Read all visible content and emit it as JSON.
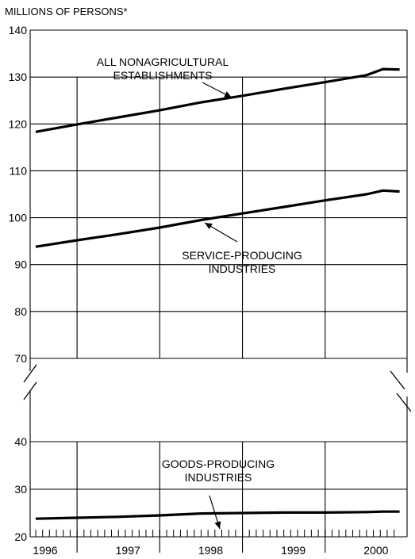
{
  "chart_data": {
    "type": "line",
    "title": "",
    "ylabel": "MILLIONS OF PERSONS*",
    "xlabel": "",
    "y_axis_break": [
      45,
      67
    ],
    "yticks_upper": [
      70,
      80,
      90,
      100,
      110,
      120,
      130,
      140
    ],
    "yticks_lower": [
      20,
      30,
      40
    ],
    "x_categories": [
      "1996",
      "1997",
      "1998",
      "1999",
      "2000"
    ],
    "x_range": [
      1996.0,
      2000.5
    ],
    "grid": true,
    "series": [
      {
        "name": "ALL NONAGRICULTURAL ESTABLISHMENTS",
        "label_lines": [
          "ALL NONAGRICULTURAL",
          "ESTABLISHMENTS"
        ],
        "x": [
          1996.0,
          1996.5,
          1997.0,
          1997.5,
          1998.0,
          1998.5,
          1999.0,
          1999.5,
          2000.0,
          2000.2,
          2000.4
        ],
        "y": [
          118.3,
          119.9,
          121.4,
          122.9,
          124.6,
          126.0,
          127.5,
          128.9,
          130.4,
          131.7,
          131.6
        ]
      },
      {
        "name": "SERVICE-PRODUCING INDUSTRIES",
        "label_lines": [
          "SERVICE-PRODUCING",
          "INDUSTRIES"
        ],
        "x": [
          1996.0,
          1996.5,
          1997.0,
          1997.5,
          1998.0,
          1998.5,
          1999.0,
          1999.5,
          2000.0,
          2000.2,
          2000.4
        ],
        "y": [
          93.8,
          95.2,
          96.5,
          97.9,
          99.5,
          100.9,
          102.3,
          103.7,
          105.0,
          105.8,
          105.6
        ]
      },
      {
        "name": "GOODS-PRODUCING INDUSTRIES",
        "label_lines": [
          "GOODS-PRODUCING",
          "INDUSTRIES"
        ],
        "x": [
          1996.0,
          1996.5,
          1997.0,
          1997.5,
          1998.0,
          1998.5,
          1999.0,
          1999.5,
          2000.0,
          2000.2,
          2000.4
        ],
        "y": [
          23.8,
          24.0,
          24.2,
          24.5,
          24.9,
          25.0,
          25.1,
          25.1,
          25.2,
          25.3,
          25.3
        ]
      }
    ]
  }
}
